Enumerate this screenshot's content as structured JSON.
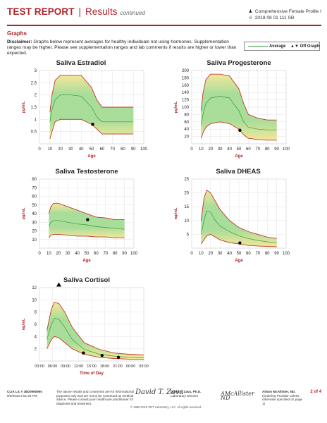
{
  "header": {
    "title": "TEST REPORT",
    "separator": "|",
    "subtitle": "Results",
    "continued": "continued",
    "profile_icon": "person-icon",
    "profile": "Comprehensive Female Profile I",
    "id_icon": "hash-icon",
    "id_label": "#",
    "id_value": "2018 08 01 111 SB"
  },
  "section_title": "Graphs",
  "disclaimer": {
    "label": "Disclaimer:",
    "text": "Graphs below represent averages for healthy individuals not using hormones. Supplementation ranges may be higher. Please see supplementation ranges and lab comments if results are higher or lower than expected."
  },
  "legend": {
    "average_label": "Average",
    "offgraph_label": "Off Graph",
    "offgraph_icon": "up-down-triangles-icon",
    "average_color": "#3a9a3a"
  },
  "colors": {
    "accent": "#b0232a",
    "band_outer": "#c0392b",
    "band_fill_center": "#a8dd9a",
    "band_fill_edge": "#f3e79a",
    "average_line": "#3a9a3a",
    "marker": "#000000"
  },
  "chart_data": [
    {
      "type": "area",
      "title": "Saliva Estradiol",
      "ylabel": "pg/mL",
      "xlabel": "Age",
      "ylim": [
        0,
        3
      ],
      "xlim": [
        0,
        100
      ],
      "yticks": [
        "0.5",
        "1",
        "1.5",
        "2",
        "2.5",
        "3"
      ],
      "xticks": [
        "0",
        "10",
        "20",
        "30",
        "40",
        "50",
        "60",
        "70",
        "80",
        "90",
        "100"
      ],
      "series": [
        {
          "role": "upper",
          "x": [
            10,
            12,
            15,
            20,
            30,
            40,
            50,
            55,
            60,
            70,
            80,
            90
          ],
          "y": [
            1.3,
            2.0,
            2.6,
            2.8,
            2.8,
            2.8,
            2.3,
            1.8,
            1.5,
            1.5,
            1.5,
            1.5
          ]
        },
        {
          "role": "average",
          "x": [
            10,
            12,
            15,
            20,
            30,
            40,
            50,
            55,
            60,
            70,
            80,
            90
          ],
          "y": [
            0.9,
            1.4,
            1.8,
            2.0,
            2.0,
            1.95,
            1.5,
            1.1,
            0.9,
            0.9,
            0.9,
            0.9
          ]
        },
        {
          "role": "lower",
          "x": [
            10,
            12,
            15,
            20,
            30,
            40,
            50,
            55,
            60,
            70,
            80,
            90
          ],
          "y": [
            0.2,
            0.5,
            0.9,
            1.0,
            1.0,
            1.0,
            0.8,
            0.6,
            0.4,
            0.4,
            0.4,
            0.4
          ]
        }
      ],
      "result": {
        "x": 51,
        "y": 0.8,
        "marker": "dot"
      }
    },
    {
      "type": "area",
      "title": "Saliva Progesterone",
      "ylabel": "pg/mL",
      "xlabel": "Age",
      "ylim": [
        0,
        200
      ],
      "xlim": [
        0,
        100
      ],
      "yticks": [
        "20",
        "40",
        "60",
        "80",
        "100",
        "120",
        "140",
        "160",
        "180",
        "200"
      ],
      "xticks": [
        "0",
        "10",
        "20",
        "30",
        "40",
        "50",
        "60",
        "70",
        "80",
        "90",
        "100"
      ],
      "series": [
        {
          "role": "upper",
          "x": [
            10,
            12,
            15,
            20,
            30,
            40,
            50,
            55,
            60,
            70,
            80,
            90
          ],
          "y": [
            90,
            140,
            175,
            190,
            190,
            185,
            150,
            110,
            80,
            70,
            65,
            65
          ]
        },
        {
          "role": "average",
          "x": [
            10,
            12,
            15,
            20,
            30,
            40,
            50,
            55,
            60,
            70,
            80,
            90
          ],
          "y": [
            50,
            80,
            110,
            125,
            130,
            125,
            90,
            60,
            45,
            40,
            38,
            38
          ]
        },
        {
          "role": "lower",
          "x": [
            10,
            12,
            15,
            20,
            30,
            40,
            50,
            55,
            60,
            70,
            80,
            90
          ],
          "y": [
            15,
            30,
            45,
            55,
            60,
            55,
            40,
            25,
            15,
            12,
            10,
            10
          ]
        }
      ],
      "result": {
        "x": 51,
        "y": 37,
        "marker": "dot"
      }
    },
    {
      "type": "area",
      "title": "Saliva Testosterone",
      "ylabel": "pg/mL",
      "xlabel": "Age",
      "ylim": [
        0,
        80
      ],
      "xlim": [
        0,
        100
      ],
      "yticks": [
        "10",
        "20",
        "30",
        "40",
        "50",
        "60",
        "70",
        "80"
      ],
      "xticks": [
        "0",
        "10",
        "20",
        "30",
        "40",
        "50",
        "60",
        "70",
        "80",
        "90",
        "100"
      ],
      "series": [
        {
          "role": "upper",
          "x": [
            10,
            12,
            15,
            20,
            30,
            40,
            50,
            60,
            70,
            80,
            90
          ],
          "y": [
            40,
            48,
            52,
            52,
            48,
            44,
            40,
            36,
            35,
            33,
            33
          ]
        },
        {
          "role": "average",
          "x": [
            10,
            12,
            15,
            20,
            30,
            40,
            50,
            60,
            70,
            80,
            90
          ],
          "y": [
            25,
            30,
            32,
            32,
            30,
            28,
            27,
            25,
            24,
            23,
            22
          ]
        },
        {
          "role": "lower",
          "x": [
            10,
            12,
            15,
            20,
            30,
            40,
            50,
            60,
            70,
            80,
            90
          ],
          "y": [
            12,
            15,
            16,
            16,
            15,
            14,
            14,
            13,
            13,
            12,
            12
          ]
        }
      ],
      "result": {
        "x": 51,
        "y": 33,
        "marker": "dot"
      }
    },
    {
      "type": "area",
      "title": "Saliva DHEAS",
      "ylabel": "ng/mL",
      "xlabel": "Age",
      "ylim": [
        0,
        25
      ],
      "xlim": [
        0,
        100
      ],
      "yticks": [
        "5",
        "10",
        "15",
        "20",
        "25"
      ],
      "xticks": [
        "0",
        "10",
        "20",
        "30",
        "40",
        "50",
        "60",
        "70",
        "80",
        "90",
        "100"
      ],
      "series": [
        {
          "role": "upper",
          "x": [
            10,
            13,
            16,
            20,
            25,
            30,
            40,
            50,
            60,
            70,
            80,
            90
          ],
          "y": [
            10,
            18,
            21,
            20,
            17,
            14,
            10,
            7.5,
            6,
            5,
            4,
            3.5
          ]
        },
        {
          "role": "average",
          "x": [
            10,
            13,
            16,
            20,
            25,
            30,
            40,
            50,
            60,
            70,
            80,
            90
          ],
          "y": [
            5,
            10,
            13.5,
            13,
            10,
            8,
            6,
            4.5,
            3.5,
            2.8,
            2.3,
            2
          ]
        },
        {
          "role": "lower",
          "x": [
            10,
            13,
            16,
            20,
            25,
            30,
            40,
            50,
            60,
            70,
            80,
            90
          ],
          "y": [
            1.5,
            3,
            4.5,
            5,
            4,
            3,
            2,
            1.5,
            1,
            0.8,
            0.6,
            0.5
          ]
        }
      ],
      "result": {
        "x": 51,
        "y": 1.9,
        "marker": "dot"
      }
    },
    {
      "type": "area",
      "title": "Saliva Cortisol",
      "ylabel": "ng/mL",
      "xlabel": "Time of Day",
      "ylim": [
        0,
        12
      ],
      "xlim": [
        0,
        7
      ],
      "yticks": [
        "2",
        "4",
        "6",
        "8",
        "10",
        "12"
      ],
      "xticks": [
        "03:00",
        "06:00",
        "09:00",
        "12:00",
        "15:00",
        "18:00",
        "21:00",
        "00:00",
        "03:00"
      ],
      "series": [
        {
          "role": "upper",
          "x": [
            0.5,
            0.8,
            1.0,
            1.3,
            1.7,
            2.2,
            3,
            4,
            5,
            6,
            7
          ],
          "y": [
            5,
            8.5,
            9.6,
            9.4,
            8,
            5.5,
            3,
            1.9,
            1.3,
            1.1,
            1.0
          ]
        },
        {
          "role": "average",
          "x": [
            0.5,
            0.8,
            1.0,
            1.3,
            1.7,
            2.2,
            3,
            4,
            5,
            6,
            7
          ],
          "y": [
            3.5,
            6,
            7,
            6.8,
            5.5,
            3.5,
            1.9,
            1.1,
            0.8,
            0.6,
            0.5
          ]
        },
        {
          "role": "lower",
          "x": [
            0.5,
            0.8,
            1.0,
            1.3,
            1.7,
            2.2,
            3,
            4,
            5,
            6,
            7
          ],
          "y": [
            2,
            3.5,
            4,
            3.8,
            3,
            2,
            1.1,
            0.6,
            0.4,
            0.3,
            0.3
          ]
        }
      ],
      "points": [
        {
          "x": 1.3,
          "y": 12.3,
          "marker": "up-triangle"
        },
        {
          "x": 2.95,
          "y": 1.3,
          "marker": "dot"
        },
        {
          "x": 4.2,
          "y": 0.9,
          "marker": "dot"
        },
        {
          "x": 5.3,
          "y": 0.6,
          "marker": "dot"
        }
      ]
    }
  ],
  "footer": {
    "clia": "CLIA Lic # 38D0960950",
    "date": "8/9/2018 2:51:29 PM",
    "disclaimer": "The above results and comments are for informational purposes only and are not to be construed as medical advice. Please consult your healthcare practitioner for diagnosis and treatment.",
    "director1_name": "David T. Zava, Ph.D.",
    "director1_title": "Laboratory Director",
    "director2_name": "Alison McAllister, ND.",
    "director2_title": "(Ordering Provider unless otherwise specified on page 1)",
    "copyright": "© 1998-2018 ZRT Laboratory, LLC. All rights reserved.",
    "page": "2 of 4"
  }
}
